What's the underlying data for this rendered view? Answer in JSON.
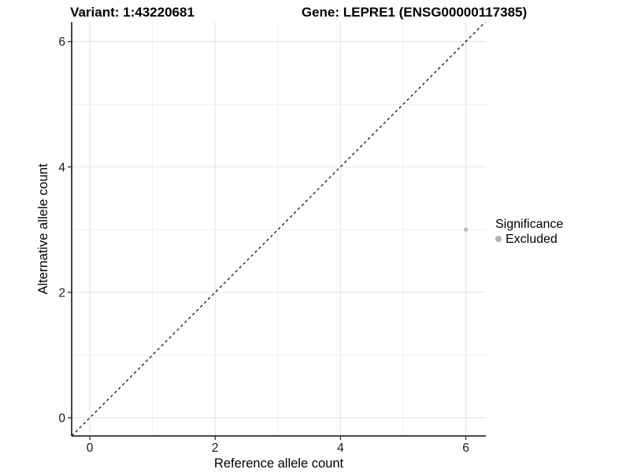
{
  "chart_data": {
    "type": "scatter",
    "title_left": "Variant: 1:43220681",
    "title_right": "Gene: LEPRE1 (ENSG00000117385)",
    "xlabel": "Reference allele count",
    "ylabel": "Alternative allele count",
    "xlim": [
      -0.29,
      6.32
    ],
    "ylim": [
      -0.29,
      6.31
    ],
    "x_ticks": [
      0,
      2,
      4,
      6
    ],
    "y_ticks": [
      0,
      2,
      4,
      6
    ],
    "grid": {
      "x": [
        0,
        1,
        2,
        3,
        4,
        5,
        6
      ],
      "y": [
        0,
        1,
        2,
        3,
        4,
        5,
        6
      ]
    },
    "points": [
      {
        "x": 6,
        "y": 3,
        "series": "Excluded"
      }
    ],
    "identity_line": {
      "from": [
        -0.29,
        -0.29
      ],
      "to": [
        6.31,
        6.31
      ],
      "style": "dashed"
    },
    "legend": {
      "title": "Significance",
      "position": "right",
      "entries": [
        {
          "label": "Excluded",
          "color": "#b0b0b0"
        }
      ]
    },
    "colors": {
      "background": "#ffffff",
      "grid_major": "#e3e3e3",
      "grid_minor": "#efefef",
      "axis": "#2f2f2f",
      "dashed_line": "#000000",
      "point": "#b5b5b5",
      "text": "#000000",
      "tick_text": "#1a1a1a"
    }
  }
}
